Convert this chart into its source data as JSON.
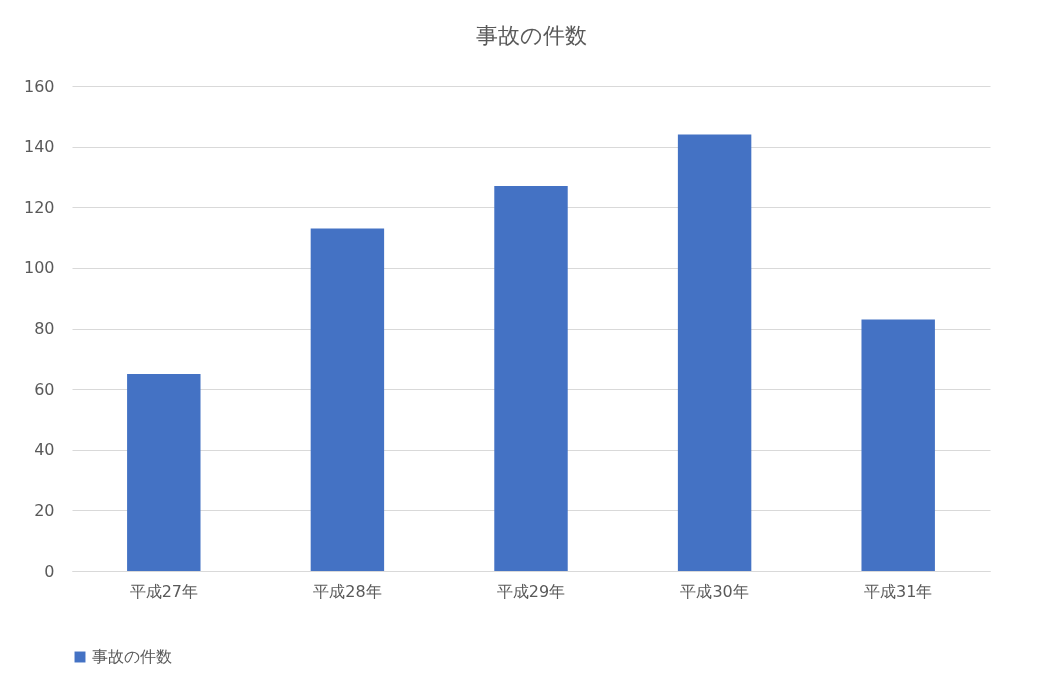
{
  "chart_data": {
    "type": "bar",
    "title": "事故の件数",
    "categories": [
      "平成27年",
      "平成28年",
      "平成29年",
      "平成30年",
      "平成31年"
    ],
    "series": [
      {
        "name": "事故の件数",
        "color": "#4472c4",
        "values": [
          65,
          113,
          127,
          144,
          83
        ]
      }
    ],
    "ylim": [
      0,
      160
    ],
    "yticks": [
      0,
      20,
      40,
      60,
      80,
      100,
      120,
      140,
      160
    ],
    "grid": "y",
    "legend": "bottom"
  }
}
